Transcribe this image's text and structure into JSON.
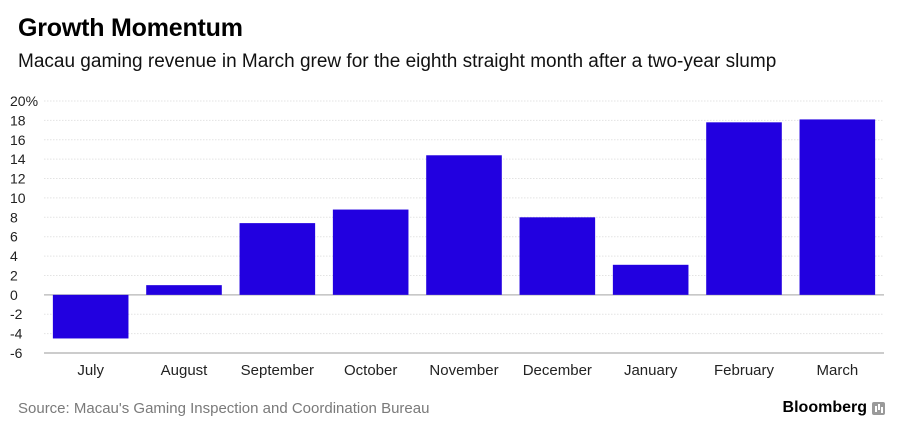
{
  "title": "Growth Momentum",
  "subtitle": "Macau gaming revenue in March grew for the eighth straight month after a two-year slump",
  "source": "Source: Macau's Gaming Inspection and Coordination Bureau",
  "brand": "Bloomberg",
  "chart_data": {
    "type": "bar",
    "categories": [
      "July",
      "August",
      "September",
      "October",
      "November",
      "December",
      "January",
      "February",
      "March"
    ],
    "values": [
      -4.5,
      1.0,
      7.4,
      8.8,
      14.4,
      8.0,
      3.1,
      17.8,
      18.1
    ],
    "ylim": [
      -6,
      20
    ],
    "yticks": [
      -6,
      -4,
      -2,
      0,
      2,
      4,
      6,
      8,
      10,
      12,
      14,
      16,
      18,
      20
    ],
    "ytick_labels": [
      "-6",
      "-4",
      "-2",
      "0",
      "2",
      "4",
      "6",
      "8",
      "10",
      "12",
      "14",
      "16",
      "18",
      "20%"
    ],
    "grid": true,
    "bar_color": "#2200e0",
    "xlabel": "",
    "ylabel": ""
  }
}
